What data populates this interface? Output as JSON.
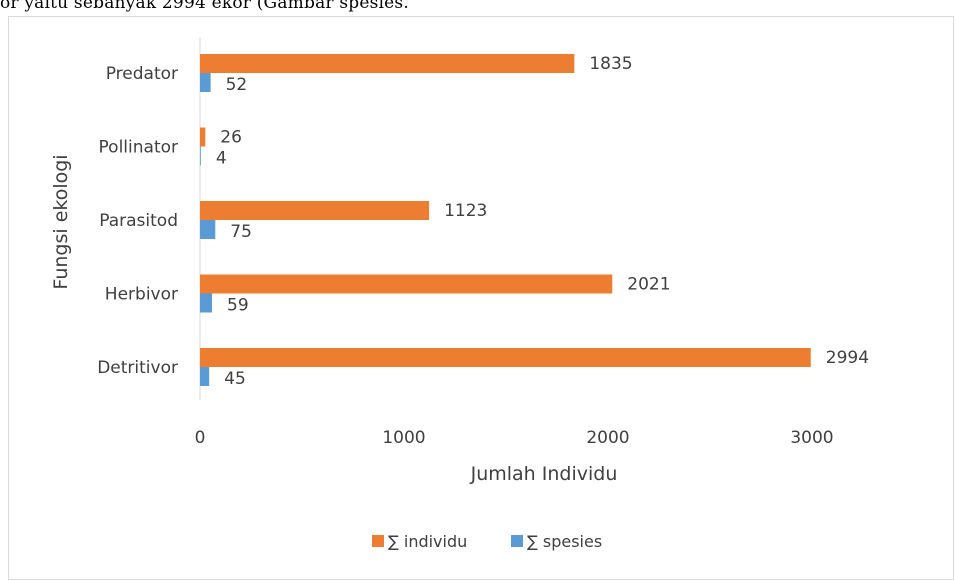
{
  "page": {
    "top_text": "or yaitu sebanyak 2994 ekor (Gambar              spesies."
  },
  "colors": {
    "individu": "#ed7d31",
    "spesies": "#5b9bd5",
    "axis": "#d9d9d9",
    "text": "#404040"
  },
  "chart_data": {
    "type": "bar",
    "orientation": "horizontal",
    "categories": [
      "Predator",
      "Pollinator",
      "Parasitod",
      "Herbivor",
      "Detritivor"
    ],
    "series": [
      {
        "name": "∑ individu",
        "values": [
          1835,
          26,
          1123,
          2021,
          2994
        ]
      },
      {
        "name": "∑ spesies",
        "values": [
          52,
          4,
          75,
          59,
          45
        ]
      }
    ],
    "title": "",
    "xlabel": "Jumlah Individu",
    "ylabel": "Fungsi ekologi",
    "xlim": [
      0,
      3500
    ],
    "xticks": [
      0,
      1000,
      2000,
      3000
    ],
    "xtick_labels": [
      "0",
      "1000",
      "2000",
      "3000"
    ],
    "grid": false,
    "legend_position": "bottom"
  }
}
